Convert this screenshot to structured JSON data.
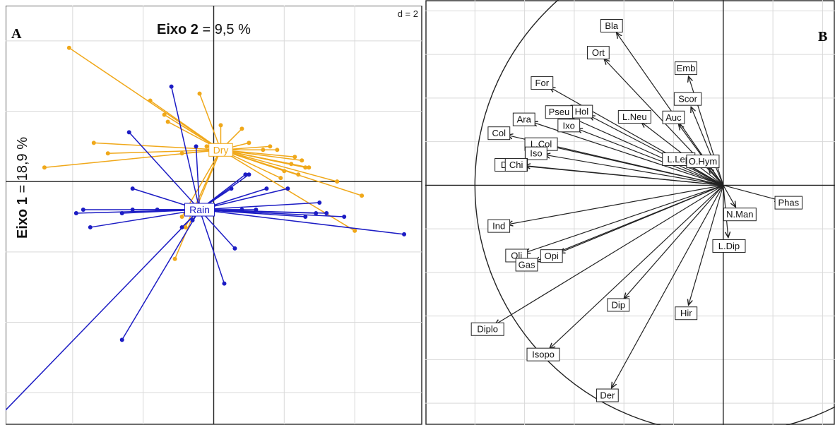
{
  "chart_data": [
    {
      "type": "scatter",
      "panel": "A",
      "d_label": "d = 2",
      "x_axis_label": {
        "bold": "Eixo 2",
        "rest": " = 9,5 %"
      },
      "y_axis_label": {
        "bold": "Eixo 1",
        "rest": " = 18,9 %"
      },
      "grid": true,
      "xlim": [
        -5.9,
        5.9
      ],
      "ylim": [
        -6.9,
        5.0
      ],
      "groups": [
        {
          "name": "Dry",
          "color": "#f0a81a",
          "centroid": [
            0.2,
            0.9
          ],
          "points": [
            [
              -4.1,
              3.8
            ],
            [
              -1.8,
              2.3
            ],
            [
              -1.4,
              1.9
            ],
            [
              -1.3,
              1.7
            ],
            [
              -0.4,
              2.5
            ],
            [
              -3.4,
              1.1
            ],
            [
              -3.0,
              0.8
            ],
            [
              -4.8,
              0.4
            ],
            [
              -0.9,
              0.8
            ],
            [
              -0.2,
              1.0
            ],
            [
              0.2,
              1.6
            ],
            [
              0.8,
              1.5
            ],
            [
              1.0,
              1.1
            ],
            [
              1.4,
              0.9
            ],
            [
              1.6,
              1.0
            ],
            [
              1.8,
              0.9
            ],
            [
              2.2,
              0.5
            ],
            [
              2.3,
              0.7
            ],
            [
              2.5,
              0.6
            ],
            [
              2.7,
              0.4
            ],
            [
              2.4,
              0.2
            ],
            [
              2.0,
              0.3
            ],
            [
              2.6,
              0.4
            ],
            [
              3.5,
              0.0
            ],
            [
              4.2,
              -0.4
            ],
            [
              1.9,
              0.1
            ],
            [
              4.0,
              -1.4
            ],
            [
              -1.1,
              -2.2
            ],
            [
              -0.8,
              -1.3
            ],
            [
              -0.9,
              -1.0
            ]
          ]
        },
        {
          "name": "Rain",
          "color": "#1c1cc4",
          "centroid": [
            -0.4,
            -0.8
          ],
          "points": [
            [
              -1.2,
              2.7
            ],
            [
              -2.4,
              1.4
            ],
            [
              -2.3,
              -0.2
            ],
            [
              -3.7,
              -0.8
            ],
            [
              -3.9,
              -0.9
            ],
            [
              -3.5,
              -1.3
            ],
            [
              -2.6,
              -0.9
            ],
            [
              -2.3,
              -0.8
            ],
            [
              -1.6,
              -0.8
            ],
            [
              -0.5,
              1.0
            ],
            [
              0.5,
              -0.2
            ],
            [
              0.9,
              0.2
            ],
            [
              1.0,
              0.2
            ],
            [
              0.8,
              -0.8
            ],
            [
              1.2,
              -0.8
            ],
            [
              1.5,
              -0.2
            ],
            [
              2.1,
              -0.2
            ],
            [
              2.6,
              -1.0
            ],
            [
              2.9,
              -0.9
            ],
            [
              3.0,
              -0.6
            ],
            [
              3.2,
              -0.9
            ],
            [
              3.7,
              -1.0
            ],
            [
              5.4,
              -1.5
            ],
            [
              0.6,
              -1.9
            ],
            [
              0.3,
              -2.9
            ],
            [
              -0.6,
              -1.1
            ],
            [
              -0.9,
              -1.3
            ],
            [
              -2.6,
              -4.5
            ],
            [
              -6.0,
              -6.6
            ]
          ]
        }
      ]
    },
    {
      "type": "correlation_circle",
      "panel": "B",
      "grid": true,
      "xlim": [
        -1.2,
        0.45
      ],
      "ylim": [
        -1.1,
        0.85
      ],
      "origin_labels": [
        "O.Hym"
      ],
      "variables": [
        {
          "label": "Bla",
          "vec": [
            -0.43,
            0.7
          ]
        },
        {
          "label": "Ort",
          "vec": [
            -0.48,
            0.58
          ]
        },
        {
          "label": "Emb",
          "vec": [
            -0.14,
            0.5
          ]
        },
        {
          "label": "For",
          "vec": [
            -0.7,
            0.45
          ]
        },
        {
          "label": "Scor",
          "vec": [
            -0.13,
            0.36
          ]
        },
        {
          "label": "Auc",
          "vec": [
            -0.18,
            0.28
          ]
        },
        {
          "label": "Hol",
          "vec": [
            -0.54,
            0.32
          ]
        },
        {
          "label": "Pseu",
          "vec": [
            -0.63,
            0.32
          ]
        },
        {
          "label": "Ara",
          "vec": [
            -0.77,
            0.29
          ]
        },
        {
          "label": "Ixo",
          "vec": [
            -0.59,
            0.26
          ]
        },
        {
          "label": "L.Neu",
          "vec": [
            -0.33,
            0.29
          ]
        },
        {
          "label": "Col",
          "vec": [
            -0.87,
            0.23
          ]
        },
        {
          "label": "L.Col",
          "vec": [
            -0.7,
            0.18
          ]
        },
        {
          "label": "Iso",
          "vec": [
            -0.72,
            0.14
          ]
        },
        {
          "label": "L.Lep",
          "vec": [
            -0.15,
            0.1
          ]
        },
        {
          "label": "Diplu",
          "vec": [
            -0.82,
            0.09
          ]
        },
        {
          "label": "Chi",
          "vec": [
            -0.8,
            0.09
          ]
        },
        {
          "label": "O.Hym",
          "vec": [
            -0.06,
            0.08
          ]
        },
        {
          "label": "Phas",
          "vec": [
            0.23,
            -0.07
          ]
        },
        {
          "label": "N.Man",
          "vec": [
            0.05,
            -0.1
          ]
        },
        {
          "label": "L.Dip",
          "vec": [
            0.02,
            -0.24
          ]
        },
        {
          "label": "Ind",
          "vec": [
            -0.87,
            -0.18
          ]
        },
        {
          "label": "Oli",
          "vec": [
            -0.8,
            -0.31
          ]
        },
        {
          "label": "Opi",
          "vec": [
            -0.66,
            -0.31
          ]
        },
        {
          "label": "Gas",
          "vec": [
            -0.76,
            -0.35
          ]
        },
        {
          "label": "Hir",
          "vec": [
            -0.14,
            -0.55
          ]
        },
        {
          "label": "Dip",
          "vec": [
            -0.4,
            -0.52
          ]
        },
        {
          "label": "Diplo",
          "vec": [
            -0.92,
            -0.64
          ]
        },
        {
          "label": "Isopo",
          "vec": [
            -0.7,
            -0.75
          ]
        },
        {
          "label": "Der",
          "vec": [
            -0.45,
            -0.93
          ]
        }
      ]
    }
  ],
  "panel_a": {
    "letter": "A",
    "d_label": "d = 2",
    "x_bold": "Eixo 2",
    "x_rest": " = 9,5 %",
    "y_bold": "Eixo 1",
    "y_rest": " = 18,9 %"
  },
  "panel_b": {
    "letter": "B"
  }
}
